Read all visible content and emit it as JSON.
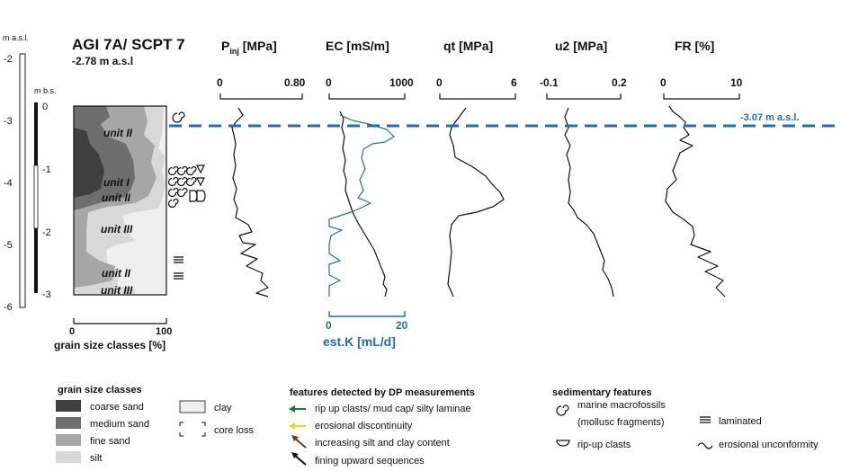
{
  "site": {
    "title": "AGI 7A/ SCPT 7",
    "elevation": "-2.78 m a.s.l"
  },
  "axes": {
    "asl": {
      "label": "m a.s.l.",
      "ticks": [
        "-2",
        "-3",
        "-4",
        "-5",
        "-6"
      ]
    },
    "bs": {
      "label": "m b.s.",
      "ticks": [
        "0",
        "-1",
        "-2",
        "-3"
      ]
    }
  },
  "grain_axis": {
    "label": "grain size classes [%]",
    "min": "0",
    "max": "100"
  },
  "units": [
    "unit II",
    "unit I",
    "unit II",
    "unit III",
    "unit II",
    "unit III"
  ],
  "tracks": [
    {
      "id": "pinj",
      "label_main": "P",
      "label_sub": "inj",
      "label_rest": " [MPa]",
      "min": "0",
      "max": "0.80"
    },
    {
      "id": "ec",
      "label_main": "EC [mS/m]",
      "min": "0",
      "max": "1000"
    },
    {
      "id": "qt",
      "label_main": "qt [MPa]",
      "min": "0",
      "max": "6"
    },
    {
      "id": "u2",
      "label_main": "u2 [MPa]",
      "min": "-0.1",
      "max": "0.2"
    },
    {
      "id": "fr",
      "label_main": "FR [%]",
      "min": "0",
      "max": "10"
    }
  ],
  "estk": {
    "label": "est.K [mL/d]",
    "min": "0",
    "max": "20",
    "color": "#1f6fb0"
  },
  "reference_line": {
    "label": "-3.07 m a.s.l.",
    "color": "#1f6fb0"
  },
  "legend": {
    "grain": {
      "title": "grain size classes",
      "items": [
        {
          "label": "coarse sand",
          "color": "#3f3f3f"
        },
        {
          "label": "medium sand",
          "color": "#6e6e6e"
        },
        {
          "label": "fine sand",
          "color": "#a6a6a6"
        },
        {
          "label": "silt",
          "color": "#d8d8d8"
        }
      ],
      "clay": {
        "label": "clay",
        "color": "#efefef"
      },
      "core_loss": "core loss"
    },
    "features": {
      "title": "features detected by DP measurements",
      "items": [
        {
          "label": "rip up clasts/ mud cap/ silty laminae",
          "color": "#1a7a2e"
        },
        {
          "label": "erosional discontinuity",
          "color": "#e6d72a"
        },
        {
          "label": "increasing silt and clay content",
          "color": "#7a3418"
        },
        {
          "label": "fining upward sequences",
          "color": "#111111"
        }
      ]
    },
    "sedimentary": {
      "title": "sedimentary features",
      "macrofossils_1": "marine macrofossils",
      "macrofossils_2": "(mollusc fragments)",
      "laminated": "laminated",
      "rip_up": "rip-up clasts",
      "erosional": "erosional unconformity"
    }
  }
}
